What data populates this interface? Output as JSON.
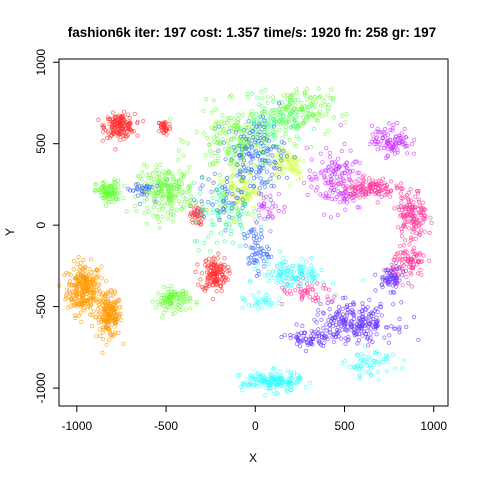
{
  "chart_data": {
    "type": "scatter",
    "title": "fashion6k iter: 197 cost: 1.357 time/s: 1920 fn: 258 gr: 197",
    "xlabel": "X",
    "ylabel": "Y",
    "xlim": [
      -1100,
      1080
    ],
    "ylim": [
      -1110,
      1020
    ],
    "x_ticks": [
      -1000,
      -500,
      0,
      500,
      1000
    ],
    "x_tick_labels": [
      "-1000",
      "-500",
      "0",
      "500",
      "1000"
    ],
    "y_ticks": [
      -1000,
      -500,
      0,
      500,
      1000
    ],
    "y_tick_labels": [
      "-1000",
      "-500",
      "0",
      "500",
      "1000"
    ],
    "grid": false,
    "legend": "none",
    "marker": "open-circle",
    "clusters": [
      {
        "color": "#ff9900",
        "center": [
          -960,
          -390
        ],
        "spread": [
          80,
          130
        ],
        "count": 260
      },
      {
        "color": "#ff9900",
        "center": [
          -820,
          -560
        ],
        "spread": [
          60,
          110
        ],
        "count": 180
      },
      {
        "color": "#ff3333",
        "center": [
          -760,
          610
        ],
        "spread": [
          70,
          60
        ],
        "count": 160
      },
      {
        "color": "#ff3333",
        "center": [
          -510,
          600
        ],
        "spread": [
          30,
          40
        ],
        "count": 40
      },
      {
        "color": "#ff3333",
        "center": [
          -230,
          -300
        ],
        "spread": [
          60,
          90
        ],
        "count": 140
      },
      {
        "color": "#ff3333",
        "center": [
          -330,
          60
        ],
        "spread": [
          30,
          50
        ],
        "count": 40
      },
      {
        "color": "#66ff33",
        "center": [
          -820,
          200
        ],
        "spread": [
          60,
          60
        ],
        "count": 90
      },
      {
        "color": "#66ff33",
        "center": [
          -500,
          210
        ],
        "spread": [
          130,
          120
        ],
        "count": 200
      },
      {
        "color": "#66ff33",
        "center": [
          -460,
          -460
        ],
        "spread": [
          80,
          60
        ],
        "count": 100
      },
      {
        "color": "#66ff33",
        "center": [
          -80,
          520
        ],
        "spread": [
          220,
          170
        ],
        "count": 220
      },
      {
        "color": "#66ff33",
        "center": [
          220,
          700
        ],
        "spread": [
          170,
          110
        ],
        "count": 150
      },
      {
        "color": "#ccff33",
        "center": [
          -90,
          220
        ],
        "spread": [
          90,
          140
        ],
        "count": 110
      },
      {
        "color": "#ccff33",
        "center": [
          180,
          380
        ],
        "spread": [
          90,
          90
        ],
        "count": 70
      },
      {
        "color": "#33ff99",
        "center": [
          -150,
          60
        ],
        "spread": [
          170,
          170
        ],
        "count": 90
      },
      {
        "color": "#33ff99",
        "center": [
          100,
          650
        ],
        "spread": [
          140,
          120
        ],
        "count": 60
      },
      {
        "color": "#3366ff",
        "center": [
          0,
          420
        ],
        "spread": [
          140,
          200
        ],
        "count": 150
      },
      {
        "color": "#3366ff",
        "center": [
          0,
          -150
        ],
        "spread": [
          60,
          120
        ],
        "count": 60
      },
      {
        "color": "#3366ff",
        "center": [
          -180,
          150
        ],
        "spread": [
          130,
          120
        ],
        "count": 40
      },
      {
        "color": "#3366ff",
        "center": [
          -640,
          220
        ],
        "spread": [
          60,
          50
        ],
        "count": 30
      },
      {
        "color": "#cc33ff",
        "center": [
          450,
          270
        ],
        "spread": [
          130,
          160
        ],
        "count": 150
      },
      {
        "color": "#cc33ff",
        "center": [
          760,
          520
        ],
        "spread": [
          90,
          80
        ],
        "count": 100
      },
      {
        "color": "#cc33ff",
        "center": [
          80,
          110
        ],
        "spread": [
          80,
          80
        ],
        "count": 30
      },
      {
        "color": "#ff3399",
        "center": [
          640,
          230
        ],
        "spread": [
          120,
          50
        ],
        "count": 120
      },
      {
        "color": "#ff3399",
        "center": [
          880,
          60
        ],
        "spread": [
          70,
          130
        ],
        "count": 140
      },
      {
        "color": "#ff3399",
        "center": [
          860,
          -230
        ],
        "spread": [
          80,
          90
        ],
        "count": 90
      },
      {
        "color": "#ff3399",
        "center": [
          300,
          -420
        ],
        "spread": [
          150,
          60
        ],
        "count": 50
      },
      {
        "color": "#6633ff",
        "center": [
          550,
          -600
        ],
        "spread": [
          190,
          100
        ],
        "count": 240
      },
      {
        "color": "#6633ff",
        "center": [
          760,
          -330
        ],
        "spread": [
          60,
          60
        ],
        "count": 60
      },
      {
        "color": "#6633ff",
        "center": [
          300,
          -700
        ],
        "spread": [
          110,
          50
        ],
        "count": 60
      },
      {
        "color": "#33ffff",
        "center": [
          220,
          -300
        ],
        "spread": [
          150,
          70
        ],
        "count": 120
      },
      {
        "color": "#33ffff",
        "center": [
          90,
          -960
        ],
        "spread": [
          140,
          50
        ],
        "count": 160
      },
      {
        "color": "#33ffff",
        "center": [
          650,
          -850
        ],
        "spread": [
          120,
          70
        ],
        "count": 60
      },
      {
        "color": "#33ffff",
        "center": [
          30,
          -480
        ],
        "spread": [
          80,
          40
        ],
        "count": 30
      }
    ]
  }
}
